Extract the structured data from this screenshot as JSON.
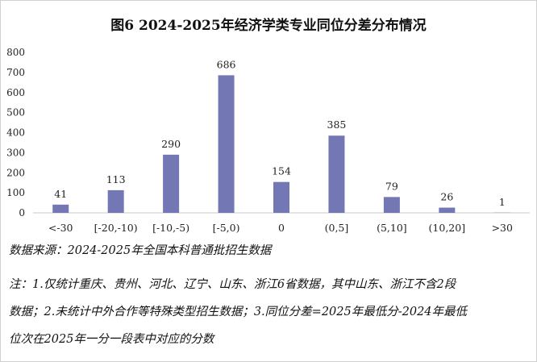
{
  "chart_data": {
    "type": "bar",
    "title": "图6  2024-2025年经济学类专业同位分差分布情况",
    "categories": [
      "<-30",
      "[-20,-10)",
      "[-10,-5)",
      "[-5,0)",
      "0",
      "(0,5]",
      "(5,10]",
      "(10,20]",
      ">30"
    ],
    "values": [
      41,
      113,
      290,
      686,
      154,
      385,
      79,
      26,
      1
    ],
    "ylim": [
      0,
      800
    ],
    "yticks": [
      0,
      100,
      200,
      300,
      400,
      500,
      600,
      700,
      800
    ],
    "xlabel": "",
    "ylabel": "",
    "grid": false,
    "bar_color": "#7378b4"
  },
  "notes": {
    "source": "数据来源：2024-2025年全国本科普通批招生数据",
    "line1": "注：1.仅统计重庆、贵州、河北、辽宁、山东、浙江6省数据，其中山东、浙江不含2段",
    "line2": "数据；2.未统计中外合作等特殊类型招生数据；3.同位分差=2025年最低分-2024年最低",
    "line3": "位次在2025年一分一段表中对应的分数"
  }
}
